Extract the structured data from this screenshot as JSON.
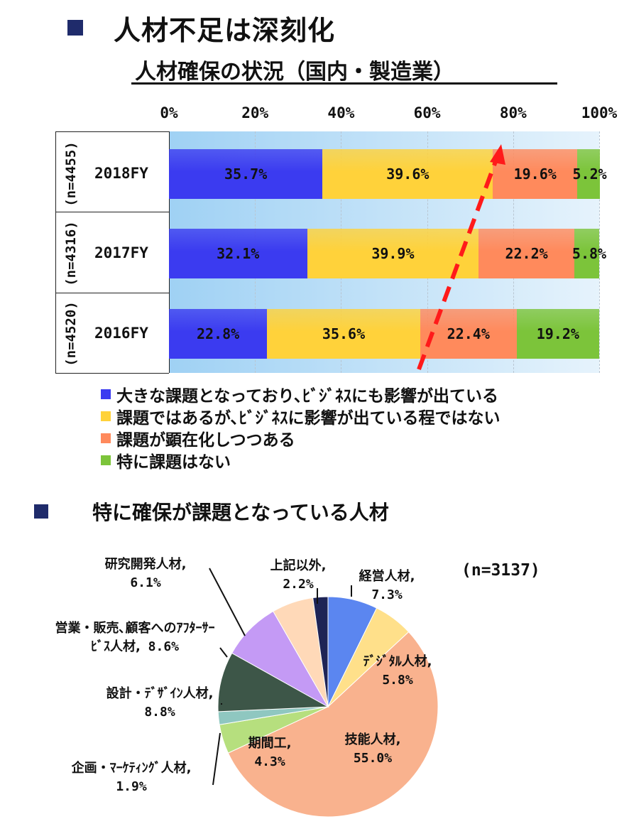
{
  "title": "人材不足は深刻化",
  "subtitle": "人材確保の状況（国内・製造業）",
  "section2_title": "特に確保が課題となっている人材",
  "chart_data": [
    {
      "type": "bar",
      "orientation": "horizontal-stacked-100",
      "x_ticks": [
        "0%",
        "20%",
        "40%",
        "60%",
        "80%",
        "100%"
      ],
      "xlim": [
        0,
        100
      ],
      "grid": true,
      "legend_position": "bottom",
      "categories": [
        "2018FY",
        "2017FY",
        "2016FY"
      ],
      "sample_sizes": [
        "(n=4455)",
        "(n=4316)",
        "(n=4520)"
      ],
      "series": [
        {
          "name": "大きな課題となっており､ﾋﾞｼﾞﾈｽにも影響が出ている",
          "color": "#3b3bf0",
          "values": [
            35.7,
            32.1,
            22.8
          ],
          "labels": [
            "35.7%",
            "32.1%",
            "22.8%"
          ]
        },
        {
          "name": "課題ではあるが､ﾋﾞｼﾞﾈｽに影響が出ている程ではない",
          "color": "#ffd23a",
          "values": [
            39.6,
            39.9,
            35.6
          ],
          "labels": [
            "39.6%",
            "39.9%",
            "35.6%"
          ]
        },
        {
          "name": "課題が顕在化しつつある",
          "color": "#ff8a5c",
          "values": [
            19.6,
            22.2,
            22.4
          ],
          "labels": [
            "19.6%",
            "22.2%",
            "22.4%"
          ]
        },
        {
          "name": "特に課題はない",
          "color": "#7cc43a",
          "values": [
            5.2,
            5.8,
            19.2
          ],
          "labels": [
            "5.2%",
            "5.8%",
            "19.2%"
          ]
        }
      ],
      "annotation": "red dashed trend arrow rising from 2016FY toward 2018FY"
    },
    {
      "type": "pie",
      "n_label": "(n=3137)",
      "slices": [
        {
          "name": "経営人材,",
          "value": 7.3,
          "label": "7.3%",
          "color": "#5b86f0"
        },
        {
          "name": "ﾃﾞｼﾞﾀﾙ人材,",
          "value": 5.8,
          "label": "5.8%",
          "color": "#ffe08a"
        },
        {
          "name": "技能人材,",
          "value": 55.0,
          "label": "55.0%",
          "color": "#f9b28e"
        },
        {
          "name": "期間工,",
          "value": 4.3,
          "label": "4.3%",
          "color": "#b6df7e"
        },
        {
          "name": "企画・ﾏｰｹﾃｨﾝｸﾞ人材,",
          "value": 1.9,
          "label": "1.9%",
          "color": "#8fc7c0"
        },
        {
          "name": "設計・ﾃﾞｻﾞｲﾝ人材,",
          "value": 8.8,
          "label": "8.8%",
          "color": "#3d5648"
        },
        {
          "name": "営業・販売､顧客へのｱﾌﾀｰｻｰﾋﾞｽ人材,",
          "value": 8.6,
          "label": "8.6%",
          "color": "#c49af5"
        },
        {
          "name": "研究開発人材,",
          "value": 6.1,
          "label": "6.1%",
          "color": "#ffd9b8"
        },
        {
          "name": "上記以外,",
          "value": 2.2,
          "label": "2.2%",
          "color": "#1e2456"
        }
      ]
    }
  ]
}
